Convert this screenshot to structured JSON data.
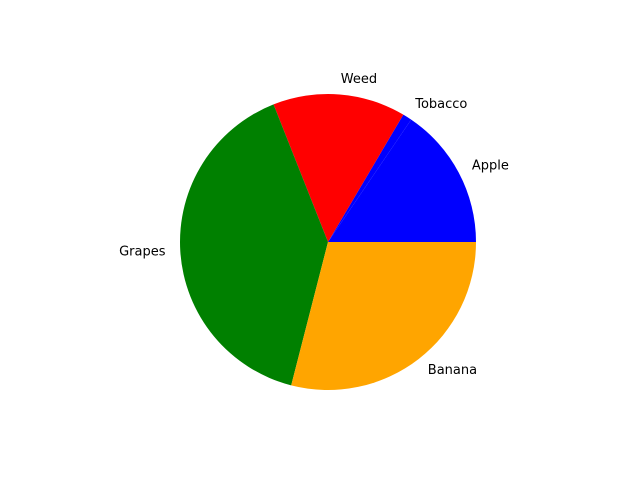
{
  "chart_data": {
    "type": "pie",
    "labels": [
      "Apple",
      "Tobacco",
      "Weed",
      "Grapes",
      "Banana"
    ],
    "values": [
      15.5,
      1,
      14.5,
      40,
      29
    ],
    "colors": [
      "#0000ff",
      "#0000ff",
      "#ff0000",
      "#008000",
      "#ffa500"
    ],
    "start_angle_deg": 0,
    "direction": "counterclockwise"
  }
}
